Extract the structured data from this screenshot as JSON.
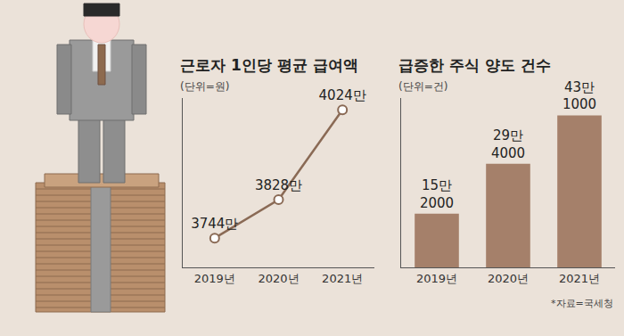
{
  "chart_data": [
    {
      "type": "line",
      "title": "근로자 1인당 평균 급여액",
      "subtitle": "(단위=원)",
      "categories": [
        "2019년",
        "2020년",
        "2021년"
      ],
      "values": [
        37440000,
        38280000,
        40240000
      ],
      "value_labels": [
        "3744만",
        "3828만",
        "4024만"
      ],
      "data_labels": true,
      "color": "#8a6a55",
      "marker": "circle",
      "ylim": [
        36800000,
        40500000
      ],
      "grid": false,
      "tick_labels": "x"
    },
    {
      "type": "bar",
      "title": "급증한 주식 양도 건수",
      "subtitle": "(단위=건)",
      "categories": [
        "2019년",
        "2020년",
        "2021년"
      ],
      "values": [
        152000,
        294000,
        431000
      ],
      "value_labels": [
        "15만\n2000",
        "29만\n4000",
        "43만\n1000"
      ],
      "data_labels": true,
      "color": "#a5806a",
      "ylim": [
        0,
        480000
      ],
      "grid": false,
      "tick_labels": "x",
      "annotations": [
        "*자료=국세청"
      ]
    }
  ]
}
